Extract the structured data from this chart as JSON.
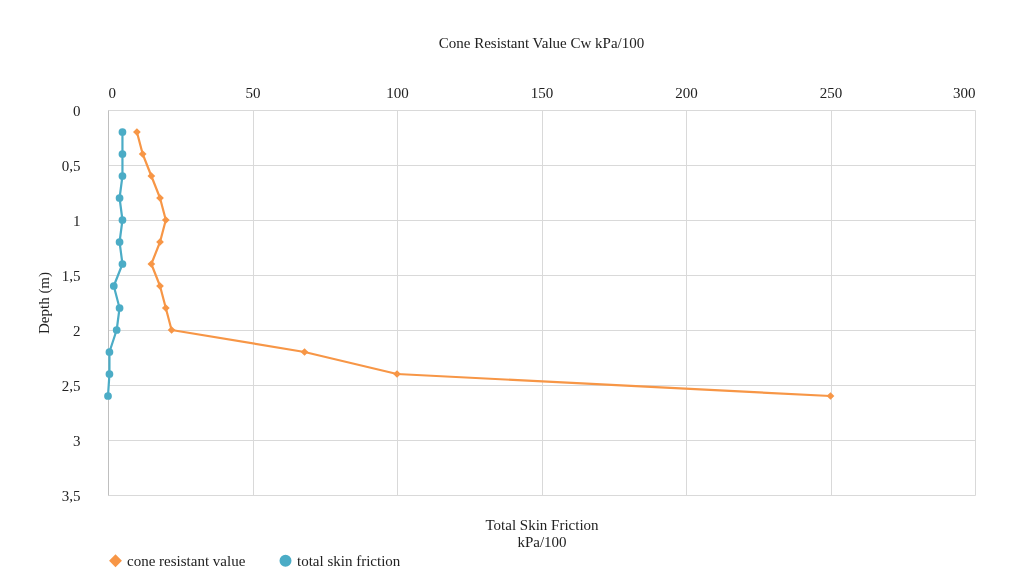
{
  "chart_data": {
    "type": "line",
    "title": "Cone Resistant Value  Cw kPa/100",
    "xlabel": "Total Skin Friction\nkPa/100",
    "ylabel": "Depth (m)",
    "xlim": [
      0,
      300
    ],
    "xticks": [
      0,
      50,
      100,
      150,
      200,
      250,
      300
    ],
    "ylim": [
      3.5,
      0
    ],
    "yticks": [
      0,
      {
        "value": 0.5,
        "label": "0,5"
      },
      1,
      {
        "value": 1.5,
        "label": "1,5"
      },
      2,
      {
        "value": 2.5,
        "label": "2,5"
      },
      3,
      {
        "value": 3.5,
        "label": "3,5"
      }
    ],
    "grid": true,
    "legend": "bottom",
    "series": [
      {
        "name": "cone resistant value",
        "color": "#f79646",
        "marker": "diamond",
        "x": [
          10,
          12,
          15,
          18,
          20,
          18,
          15,
          18,
          20,
          22,
          68,
          100,
          250
        ],
        "values": [
          0.2,
          0.4,
          0.6,
          0.8,
          1.0,
          1.2,
          1.4,
          1.6,
          1.8,
          2.0,
          2.2,
          2.4,
          2.6
        ]
      },
      {
        "name": "total skin friction",
        "color": "#4bacc6",
        "marker": "circle",
        "x": [
          5,
          5,
          5,
          4,
          5,
          4,
          5,
          2,
          4,
          3,
          0.5,
          0.5,
          0
        ],
        "values": [
          0.2,
          0.4,
          0.6,
          0.8,
          1.0,
          1.2,
          1.4,
          1.6,
          1.8,
          2.0,
          2.2,
          2.4,
          2.6
        ]
      }
    ]
  }
}
